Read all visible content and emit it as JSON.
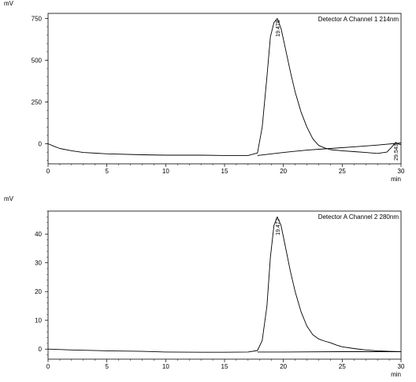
{
  "chart_data": [
    {
      "type": "line",
      "title": "Detector A Channel 1 214nm",
      "ylabel": "mV",
      "xlabel": "min",
      "xlim": [
        0,
        30
      ],
      "ylim": [
        -120,
        780
      ],
      "xticks": [
        0,
        5,
        10,
        15,
        20,
        25,
        30
      ],
      "yticks": [
        0,
        250,
        500,
        750
      ],
      "peak_labels": [
        {
          "x": 19.478,
          "y": 750,
          "text": "19.478"
        },
        {
          "x": 29.543,
          "y": 10,
          "text": "29.543"
        }
      ],
      "series": [
        {
          "x": [
            0,
            0.5,
            1,
            2,
            3,
            5,
            8,
            10,
            13,
            15,
            17,
            17.8,
            18.2,
            18.6,
            18.9,
            19.2,
            19.478,
            19.8,
            20.2,
            20.6,
            21,
            21.5,
            22,
            22.5,
            23,
            23.5,
            24,
            25,
            26,
            27,
            28,
            28.8,
            29.2,
            29.543,
            29.8,
            30
          ],
          "y": [
            0,
            -15,
            -28,
            -42,
            -52,
            -60,
            -66,
            -68,
            -68,
            -70,
            -70,
            -55,
            100,
            400,
            640,
            725,
            750,
            690,
            560,
            430,
            310,
            190,
            100,
            30,
            -10,
            -25,
            -35,
            -42,
            -47,
            -52,
            -58,
            -50,
            -20,
            8,
            -2,
            -5
          ]
        },
        {
          "x": [
            17.8,
            20,
            22,
            24,
            26,
            28,
            30
          ],
          "y": [
            -70,
            -52,
            -38,
            -28,
            -18,
            -8,
            5
          ]
        }
      ]
    },
    {
      "type": "line",
      "title": "Detector A Channel 2 280nm",
      "ylabel": "mV",
      "xlabel": "min",
      "xlim": [
        0,
        30
      ],
      "ylim": [
        -3.5,
        48
      ],
      "xticks": [
        0,
        5,
        10,
        15,
        20,
        25,
        30
      ],
      "yticks": [
        0,
        10,
        20,
        30,
        40
      ],
      "peak_labels": [
        {
          "x": 19.477,
          "y": 46,
          "text": "19.477"
        }
      ],
      "series": [
        {
          "x": [
            0,
            2,
            5,
            8,
            10,
            13,
            15,
            17,
            17.8,
            18.2,
            18.6,
            18.9,
            19.2,
            19.477,
            19.8,
            20.2,
            20.6,
            21,
            21.5,
            22,
            22.5,
            23,
            23.5,
            24,
            24.5,
            25,
            26,
            27,
            28,
            29,
            30
          ],
          "y": [
            0,
            -0.3,
            -0.6,
            -0.8,
            -1.0,
            -1.1,
            -1.1,
            -1.0,
            -0.5,
            3,
            15,
            32,
            43,
            46,
            43,
            35,
            27,
            20,
            13,
            8,
            5,
            3.5,
            2.8,
            2.2,
            1.4,
            0.8,
            0.2,
            -0.3,
            -0.6,
            -0.8,
            -0.9
          ]
        },
        {
          "x": [
            17.8,
            20,
            25,
            30
          ],
          "y": [
            -1.0,
            -1.0,
            -0.9,
            -0.9
          ]
        }
      ]
    }
  ]
}
